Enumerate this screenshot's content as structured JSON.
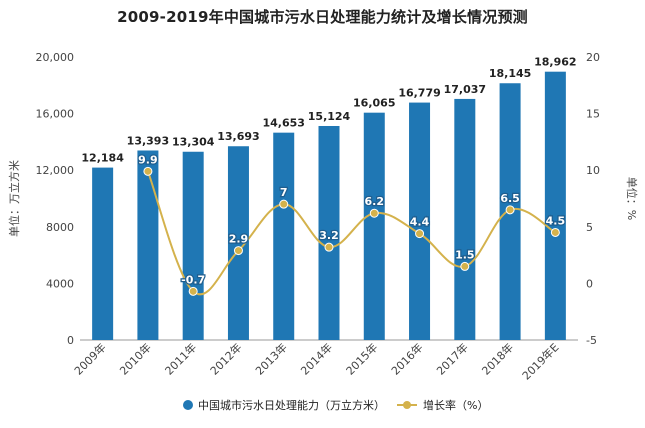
{
  "chart_data": {
    "type": "bar",
    "title": "2009-2019年中国城市污水日处理能力统计及增长情况预测",
    "categories": [
      "2009年",
      "2010年",
      "2011年",
      "2012年",
      "2013年",
      "2014年",
      "2015年",
      "2016年",
      "2017年",
      "2018年",
      "2019年E"
    ],
    "ylabel": "单位：万立方米",
    "y2label": "单位：%",
    "ylim": [
      0,
      20000
    ],
    "y_ticks": [
      "0",
      "4000",
      "8000",
      "12,000",
      "16,000",
      "20,000"
    ],
    "y2lim": [
      -5,
      20
    ],
    "y2_ticks": [
      "-5",
      "0",
      "5",
      "10",
      "15",
      "20"
    ],
    "series": [
      {
        "name": "中国城市污水日处理能力（万立方米）",
        "type": "bar",
        "axis": "left",
        "color": "#1f77b4",
        "values": [
          12184,
          13393,
          13304,
          13693,
          14653,
          15124,
          16065,
          16779,
          17037,
          18145,
          18962
        ],
        "labels": [
          "12,184",
          "13,393",
          "13,304",
          "13,693",
          "14,653",
          "15,124",
          "16,065",
          "16,779",
          "17,037",
          "18,145",
          "18,962"
        ]
      },
      {
        "name": "增长率（%）",
        "type": "line",
        "axis": "right",
        "color": "#d4b24c",
        "values": [
          null,
          9.9,
          -0.7,
          2.9,
          7,
          3.2,
          6.2,
          4.4,
          1.5,
          6.5,
          4.5
        ],
        "labels": [
          "",
          "9.9",
          "-0.7",
          "2.9",
          "7",
          "3.2",
          "6.2",
          "4.4",
          "1.5",
          "6.5",
          "4.5"
        ]
      }
    ],
    "grid": false,
    "legend_position": "bottom"
  }
}
